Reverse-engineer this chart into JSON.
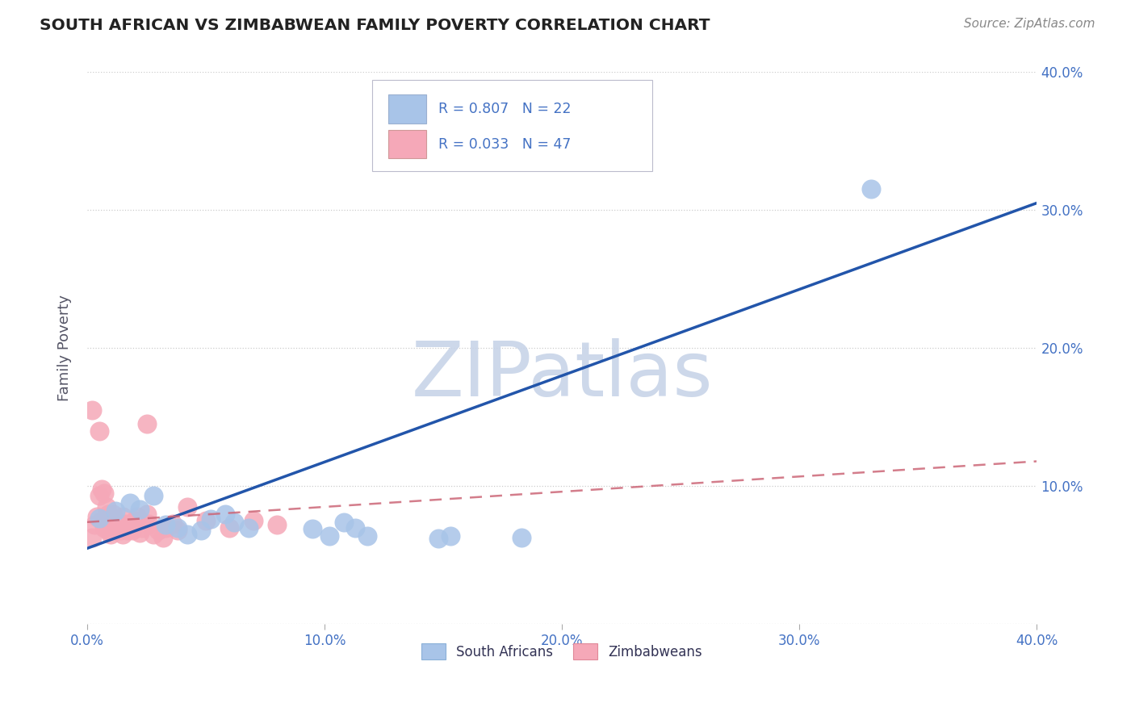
{
  "title": "SOUTH AFRICAN VS ZIMBABWEAN FAMILY POVERTY CORRELATION CHART",
  "source": "Source: ZipAtlas.com",
  "ylabel": "Family Poverty",
  "xlim": [
    0.0,
    0.4
  ],
  "ylim": [
    0.0,
    0.4
  ],
  "sa_R": 0.807,
  "sa_N": 22,
  "zim_R": 0.033,
  "zim_N": 47,
  "sa_color": "#a8c4e8",
  "sa_line_color": "#2255aa",
  "sa_edge_color": "#8ab0d8",
  "zim_color": "#f5a8b8",
  "zim_line_color": "#cc6677",
  "zim_edge_color": "#e08898",
  "background_color": "#ffffff",
  "grid_color": "#cccccc",
  "title_color": "#222222",
  "source_color": "#888888",
  "axis_label_color": "#4472c4",
  "text_color": "#333355",
  "watermark": "ZIPatlas",
  "watermark_color": "#c8d4e8",
  "sa_x": [
    0.005,
    0.012,
    0.018,
    0.022,
    0.028,
    0.033,
    0.038,
    0.042,
    0.048,
    0.052,
    0.058,
    0.062,
    0.068,
    0.095,
    0.102,
    0.108,
    0.113,
    0.118,
    0.148,
    0.153,
    0.183,
    0.33
  ],
  "sa_y": [
    0.077,
    0.082,
    0.088,
    0.083,
    0.093,
    0.072,
    0.07,
    0.065,
    0.068,
    0.076,
    0.08,
    0.074,
    0.07,
    0.069,
    0.064,
    0.074,
    0.07,
    0.064,
    0.062,
    0.064,
    0.063,
    0.315
  ],
  "sa_line_x0": 0.0,
  "sa_line_y0": 0.055,
  "sa_line_x1": 0.4,
  "sa_line_y1": 0.305,
  "zim_line_x0": 0.0,
  "zim_line_y0": 0.074,
  "zim_line_x1": 0.4,
  "zim_line_y1": 0.118,
  "zim_x": [
    0.002,
    0.003,
    0.004,
    0.005,
    0.005,
    0.006,
    0.006,
    0.007,
    0.007,
    0.008,
    0.008,
    0.009,
    0.009,
    0.01,
    0.01,
    0.011,
    0.011,
    0.012,
    0.012,
    0.013,
    0.013,
    0.014,
    0.015,
    0.015,
    0.016,
    0.017,
    0.018,
    0.019,
    0.02,
    0.021,
    0.022,
    0.023,
    0.025,
    0.026,
    0.028,
    0.03,
    0.032,
    0.033,
    0.036,
    0.038,
    0.042,
    0.05,
    0.06,
    0.07,
    0.08,
    0.002,
    0.025
  ],
  "zim_y": [
    0.155,
    0.072,
    0.078,
    0.14,
    0.093,
    0.098,
    0.075,
    0.095,
    0.07,
    0.085,
    0.072,
    0.08,
    0.068,
    0.076,
    0.065,
    0.08,
    0.072,
    0.075,
    0.068,
    0.07,
    0.072,
    0.068,
    0.065,
    0.078,
    0.073,
    0.068,
    0.072,
    0.068,
    0.075,
    0.078,
    0.066,
    0.07,
    0.08,
    0.073,
    0.065,
    0.068,
    0.063,
    0.07,
    0.073,
    0.068,
    0.085,
    0.075,
    0.07,
    0.075,
    0.072,
    0.063,
    0.145
  ]
}
